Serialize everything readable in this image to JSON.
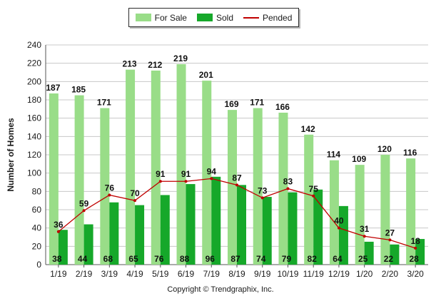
{
  "chart_data": {
    "type": "bar",
    "categories": [
      "1/19",
      "2/19",
      "3/19",
      "4/19",
      "5/19",
      "6/19",
      "7/19",
      "8/19",
      "9/19",
      "10/19",
      "11/19",
      "12/19",
      "1/20",
      "2/20",
      "3/20"
    ],
    "series": [
      {
        "name": "For Sale",
        "type": "bar",
        "color": "#99dd88",
        "values": [
          187,
          185,
          171,
          213,
          212,
          219,
          201,
          169,
          171,
          166,
          142,
          114,
          109,
          120,
          116
        ]
      },
      {
        "name": "Sold",
        "type": "bar",
        "color": "#16a82a",
        "values": [
          38,
          44,
          68,
          65,
          76,
          88,
          96,
          87,
          74,
          79,
          82,
          64,
          25,
          22,
          28
        ]
      },
      {
        "name": "Pended",
        "type": "line",
        "color": "#c00000",
        "values": [
          36,
          59,
          76,
          70,
          91,
          91,
          94,
          87,
          73,
          83,
          75,
          40,
          31,
          27,
          18
        ]
      }
    ],
    "ylabel": "Number of Homes",
    "xlabel": "",
    "ylim": [
      0,
      240
    ],
    "yticks": [
      0,
      20,
      40,
      60,
      80,
      100,
      120,
      140,
      160,
      180,
      200,
      220,
      240
    ],
    "grid": true,
    "legend": "top-center"
  },
  "copyright": "Copyright © Trendgraphix, Inc."
}
